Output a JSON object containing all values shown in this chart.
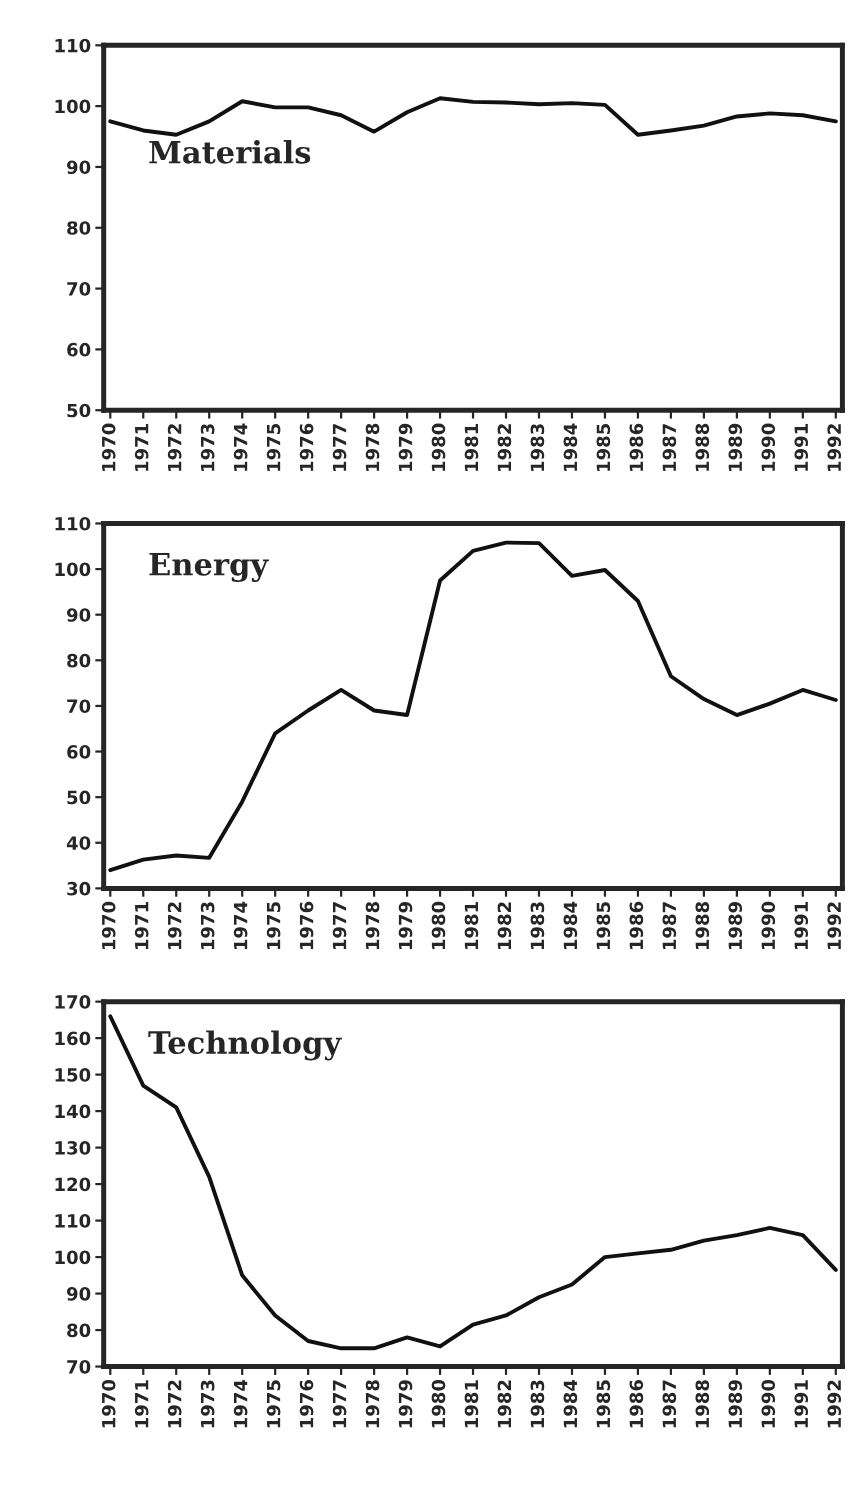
{
  "chart_data": [
    {
      "type": "line",
      "annotations": [
        "Materials"
      ],
      "x": [
        1970,
        1971,
        1972,
        1973,
        1974,
        1975,
        1976,
        1977,
        1978,
        1979,
        1980,
        1981,
        1982,
        1983,
        1984,
        1985,
        1986,
        1987,
        1988,
        1989,
        1990,
        1991,
        1992
      ],
      "series": [
        {
          "color": "#111111",
          "values": [
            97.5,
            96,
            95.3,
            97.5,
            100.8,
            99.8,
            99.8,
            98.5,
            95.8,
            99,
            101.3,
            100.7,
            100.6,
            100.3,
            100.5,
            100.2,
            95.3,
            96,
            96.8,
            98.3,
            98.8,
            98.5,
            97.5
          ]
        }
      ],
      "xlim": [
        1969.8,
        1992.2
      ],
      "xticks": [
        1970,
        1971,
        1972,
        1973,
        1974,
        1975,
        1976,
        1977,
        1978,
        1979,
        1980,
        1981,
        1982,
        1983,
        1984,
        1985,
        1986,
        1987,
        1988,
        1989,
        1990,
        1991,
        1992
      ],
      "ylim": [
        50,
        110
      ],
      "yticks": [
        50,
        60,
        70,
        80,
        90,
        100,
        110
      ],
      "grid": false,
      "legend": false
    },
    {
      "type": "line",
      "annotations": [
        "Energy"
      ],
      "x": [
        1970,
        1971,
        1972,
        1973,
        1974,
        1975,
        1976,
        1977,
        1978,
        1979,
        1980,
        1981,
        1982,
        1983,
        1984,
        1985,
        1986,
        1987,
        1988,
        1989,
        1990,
        1991,
        1992
      ],
      "series": [
        {
          "color": "#111111",
          "values": [
            34,
            36.3,
            37.2,
            36.7,
            49,
            64,
            69,
            73.5,
            69,
            68,
            97.5,
            104,
            105.8,
            105.7,
            98.5,
            99.8,
            93,
            76.5,
            71.5,
            68,
            70.5,
            73.5,
            71.3
          ]
        }
      ],
      "xlim": [
        1969.8,
        1992.2
      ],
      "xticks": [
        1970,
        1971,
        1972,
        1973,
        1974,
        1975,
        1976,
        1977,
        1978,
        1979,
        1980,
        1981,
        1982,
        1983,
        1984,
        1985,
        1986,
        1987,
        1988,
        1989,
        1990,
        1991,
        1992
      ],
      "ylim": [
        30,
        110
      ],
      "yticks": [
        30,
        40,
        50,
        60,
        70,
        80,
        90,
        100,
        110
      ],
      "grid": false,
      "legend": false
    },
    {
      "type": "line",
      "annotations": [
        "Technology"
      ],
      "x": [
        1970,
        1971,
        1972,
        1973,
        1974,
        1975,
        1976,
        1977,
        1978,
        1979,
        1980,
        1981,
        1982,
        1983,
        1984,
        1985,
        1986,
        1987,
        1988,
        1989,
        1990,
        1991,
        1992
      ],
      "series": [
        {
          "color": "#111111",
          "values": [
            166,
            147,
            141,
            122,
            95,
            84,
            77,
            75,
            75,
            78,
            75.5,
            81.5,
            84,
            89,
            92.5,
            100,
            101,
            102,
            104.5,
            106,
            108,
            106,
            96.5
          ]
        }
      ],
      "xlim": [
        1969.8,
        1992.2
      ],
      "xticks": [
        1970,
        1971,
        1972,
        1973,
        1974,
        1975,
        1976,
        1977,
        1978,
        1979,
        1980,
        1981,
        1982,
        1983,
        1984,
        1985,
        1986,
        1987,
        1988,
        1989,
        1990,
        1991,
        1992
      ],
      "ylim": [
        70,
        170
      ],
      "yticks": [
        70,
        80,
        90,
        100,
        110,
        120,
        130,
        140,
        150,
        160,
        170
      ],
      "grid": false,
      "legend": false
    }
  ]
}
